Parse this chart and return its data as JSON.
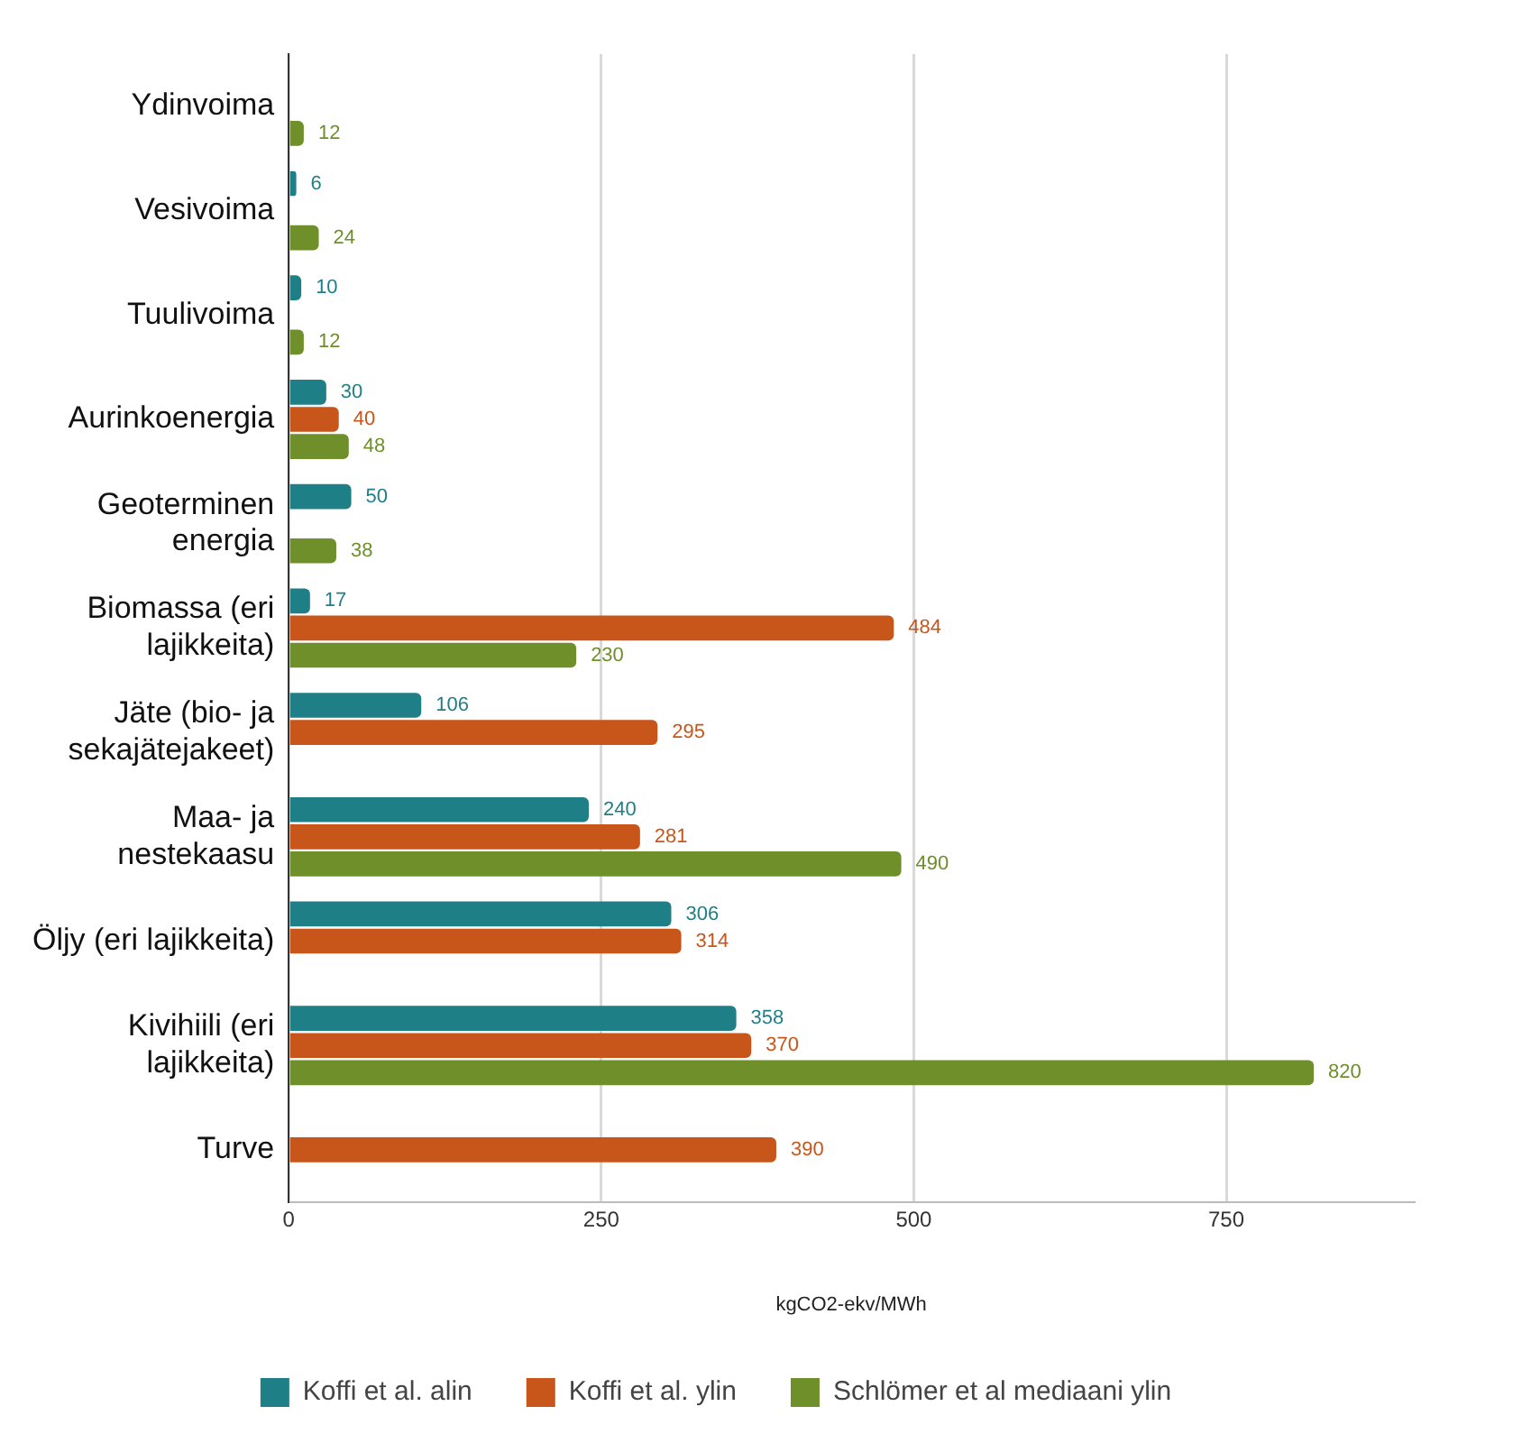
{
  "chart_data": {
    "type": "bar",
    "orientation": "horizontal",
    "xlabel": "kgCO2-ekv/MWh",
    "categories": [
      "Ydinvoima",
      "Vesivoima",
      "Tuulivoima",
      "Aurinkoenergia",
      "Geoterminen\nenergia",
      "Biomassa (eri\nlajikkeita)",
      "Jäte (bio- ja\nsekajätejakeet)",
      "Maa- ja\nnestekaasu",
      "Öljy (eri lajikkeita)",
      "Kivihiili (eri\nlajikkeita)",
      "Turve"
    ],
    "series": [
      {
        "name": "Koffi et al. alin",
        "color": "#1f7f86",
        "values": [
          null,
          6,
          10,
          30,
          50,
          17,
          106,
          240,
          306,
          358,
          null
        ]
      },
      {
        "name": "Koffi et al. ylin",
        "color": "#c8561b",
        "values": [
          null,
          null,
          null,
          40,
          null,
          484,
          295,
          281,
          314,
          370,
          390
        ]
      },
      {
        "name": "Schlömer et al mediaani ylin",
        "color": "#6e8f2a",
        "values": [
          12,
          24,
          12,
          48,
          38,
          230,
          null,
          490,
          null,
          820,
          null
        ]
      }
    ],
    "xlim": [
      0,
      900
    ],
    "xticks": [
      0,
      250,
      500,
      750
    ],
    "grid": "x",
    "legend": "bottom",
    "data_labels": true
  }
}
